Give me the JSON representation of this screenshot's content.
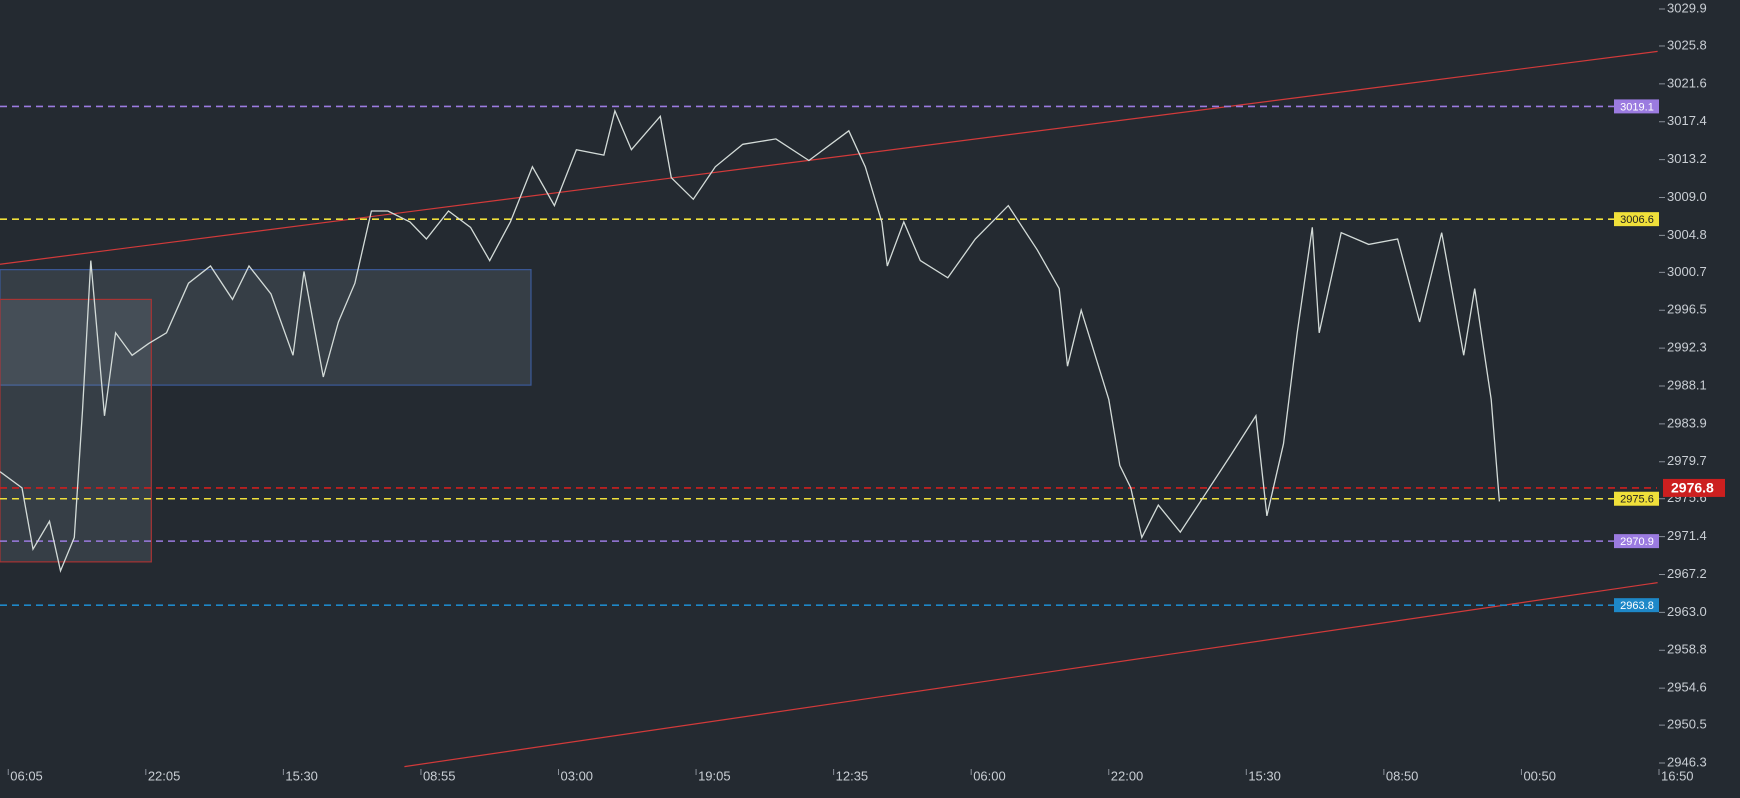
{
  "chart_data": {
    "type": "line",
    "x": [
      -6,
      10,
      18,
      30,
      38,
      48,
      54,
      60,
      70,
      78,
      90,
      102,
      115,
      131,
      147,
      163,
      175,
      191,
      207,
      215,
      229,
      240,
      252,
      264,
      276,
      292,
      304,
      320,
      336,
      350,
      365,
      381,
      397,
      413,
      433,
      441,
      453,
      474,
      482,
      498,
      514,
      534,
      558,
      582,
      611,
      623,
      635,
      639,
      651,
      663,
      683,
      703,
      727,
      748,
      764,
      770,
      780,
      800,
      808,
      816,
      824,
      836,
      852,
      868,
      889,
      907,
      915,
      927,
      937,
      948,
      953,
      969,
      989,
      1010,
      1026,
      1042,
      1058,
      1066,
      1078,
      1084
    ],
    "series": [
      {
        "color": "#d3dbd8",
        "values": [
          2978.6,
          2976.8,
          2970.0,
          2973.1,
          2967.6,
          2971.3,
          2985.4,
          3002.0,
          2984.8,
          2994.0,
          2991.5,
          2992.8,
          2994.0,
          2999.5,
          3001.4,
          2997.7,
          3001.4,
          2998.3,
          2991.5,
          3000.8,
          2989.1,
          2995.2,
          2999.5,
          3007.5,
          3007.5,
          3006.3,
          3004.4,
          3007.5,
          3005.7,
          3002.0,
          3006.3,
          3012.4,
          3008.1,
          3014.3,
          3013.7,
          3018.6,
          3014.3,
          3018.0,
          3011.2,
          3008.8,
          3012.4,
          3014.9,
          3015.5,
          3013.1,
          3016.4,
          3012.4,
          3006.3,
          3001.4,
          3006.3,
          3002.0,
          3000.1,
          3004.4,
          3008.1,
          3003.2,
          2998.9,
          2990.3,
          2996.5,
          2986.6,
          2979.3,
          2976.8,
          2971.3,
          2974.9,
          2971.9,
          2975.6,
          2980.5,
          2984.8,
          2973.7,
          2981.7,
          2994.0,
          3005.7,
          2994.0,
          3005.1,
          3003.8,
          3004.4,
          2995.2,
          3005.1,
          2991.5,
          2998.9,
          2986.6,
          2975.3
        ]
      }
    ],
    "xlim": [
      -6,
      1200
    ],
    "xticks": [
      {
        "value": 0,
        "label": "06:05"
      },
      {
        "value": 100,
        "label": "22:05"
      },
      {
        "value": 200,
        "label": "15:30"
      },
      {
        "value": 300,
        "label": "08:55"
      },
      {
        "value": 400,
        "label": "03:00"
      },
      {
        "value": 500,
        "label": "19:05"
      },
      {
        "value": 600,
        "label": "12:35"
      },
      {
        "value": 700,
        "label": "06:00"
      },
      {
        "value": 800,
        "label": "22:00"
      },
      {
        "value": 900,
        "label": "15:30"
      },
      {
        "value": 1000,
        "label": "08:50"
      },
      {
        "value": 1100,
        "label": "00:50"
      },
      {
        "value": 1200,
        "label": "16:50"
      }
    ],
    "ylim": [
      2946.3,
      3029.9
    ],
    "yticks": [
      3029.9,
      3025.8,
      3021.6,
      3017.4,
      3013.2,
      {
        "value": 3009,
        "label": "3009.0"
      },
      3004.8,
      3000.7,
      2996.5,
      2992.3,
      2988.1,
      2983.9,
      2979.7,
      2975.6,
      2971.4,
      2967.2,
      {
        "value": 2963,
        "label": "2963.0"
      },
      2958.8,
      2954.6,
      2950.5,
      2946.3
    ],
    "levels": [
      {
        "value": 3019.1,
        "color": "#9b7be0"
      },
      {
        "value": 3006.6,
        "color": "#f0e03a"
      },
      {
        "value": 2976.8,
        "color": "#cc1f1f",
        "current": true
      },
      {
        "value": 2975.6,
        "color": "#f0e03a"
      },
      {
        "value": 2970.9,
        "color": "#9b7be0"
      },
      {
        "value": 2963.8,
        "color": "#1e88c8"
      }
    ],
    "trendlines": [
      {
        "x": [
          -6,
          1199
        ],
        "y": [
          3001.6,
          3025.2
        ],
        "color": "#d23a3a"
      },
      {
        "x": [
          288,
          1199
        ],
        "y": [
          2945.9,
          2966.3
        ],
        "color": "#d23a3a"
      }
    ],
    "zones": [
      {
        "x": [
          -6,
          380
        ],
        "y": [
          2988.2,
          3001.0
        ],
        "color": "#3b5a9a"
      },
      {
        "x": [
          -6,
          104
        ],
        "y": [
          2968.6,
          2997.7
        ],
        "color": "#a83434"
      }
    ]
  }
}
